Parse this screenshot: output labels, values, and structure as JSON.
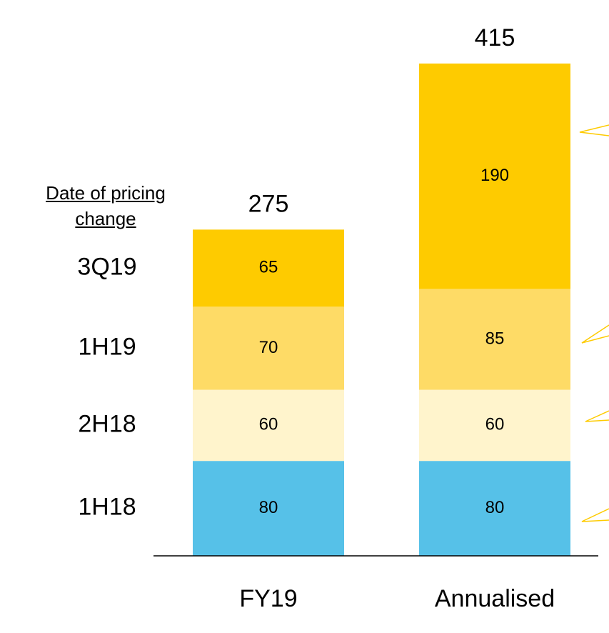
{
  "chart_data": {
    "type": "stacked_bar",
    "legend_title": "Date of pricing change",
    "categories": [
      "FY19",
      "Annualised"
    ],
    "series": [
      {
        "name": "1H18",
        "color": "#56c1e8",
        "values": [
          80,
          80
        ]
      },
      {
        "name": "2H18",
        "color": "#fff4cc",
        "values": [
          60,
          60
        ]
      },
      {
        "name": "1H19",
        "color": "#fedb66",
        "values": [
          70,
          85
        ]
      },
      {
        "name": "3Q19",
        "color": "#fecb00",
        "values": [
          65,
          190
        ]
      }
    ],
    "totals": [
      275,
      415
    ],
    "ylim": [
      0,
      430
    ]
  }
}
